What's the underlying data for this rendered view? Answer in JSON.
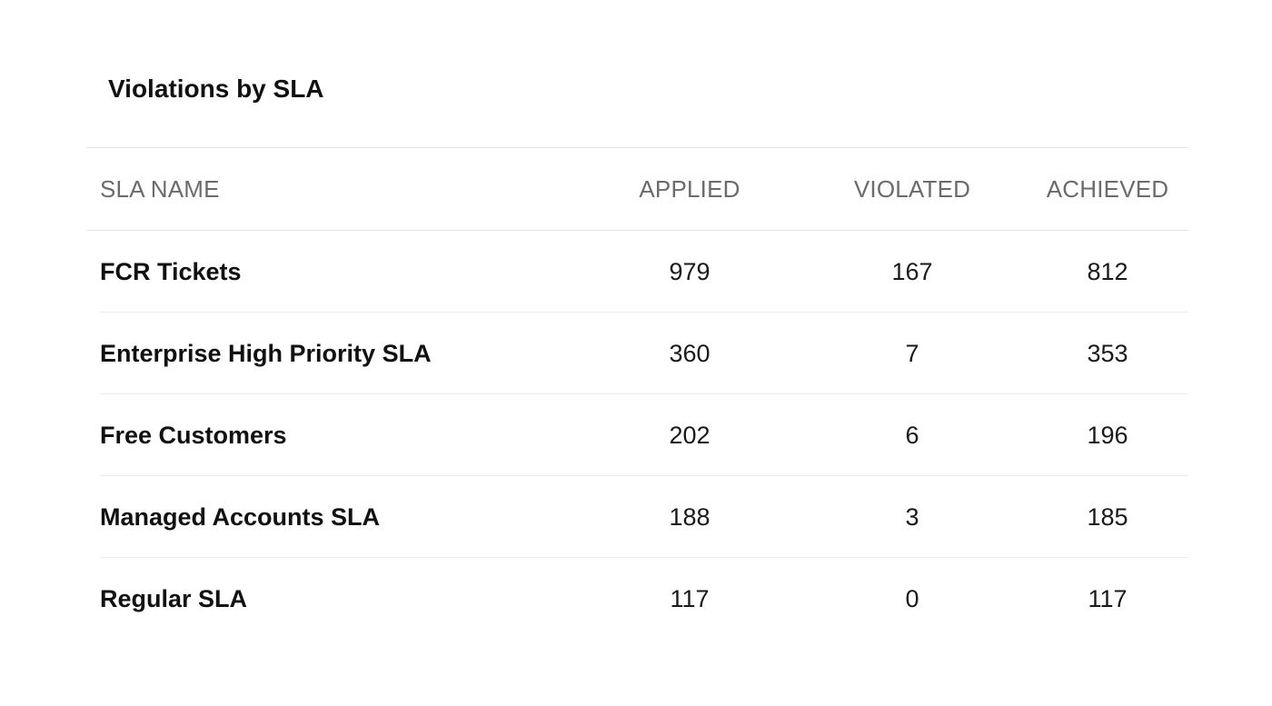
{
  "title": "Violations by SLA",
  "columns": {
    "name": "SLA NAME",
    "applied": "APPLIED",
    "violated": "VIOLATED",
    "achieved": "ACHIEVED"
  },
  "rows": [
    {
      "name": "FCR Tickets",
      "applied": "979",
      "violated": "167",
      "achieved": "812"
    },
    {
      "name": "Enterprise High Priority SLA",
      "applied": "360",
      "violated": "7",
      "achieved": "353"
    },
    {
      "name": "Free Customers",
      "applied": "202",
      "violated": "6",
      "achieved": "196"
    },
    {
      "name": "Managed Accounts SLA",
      "applied": "188",
      "violated": "3",
      "achieved": "185"
    },
    {
      "name": "Regular SLA",
      "applied": "117",
      "violated": "0",
      "achieved": "117"
    }
  ]
}
